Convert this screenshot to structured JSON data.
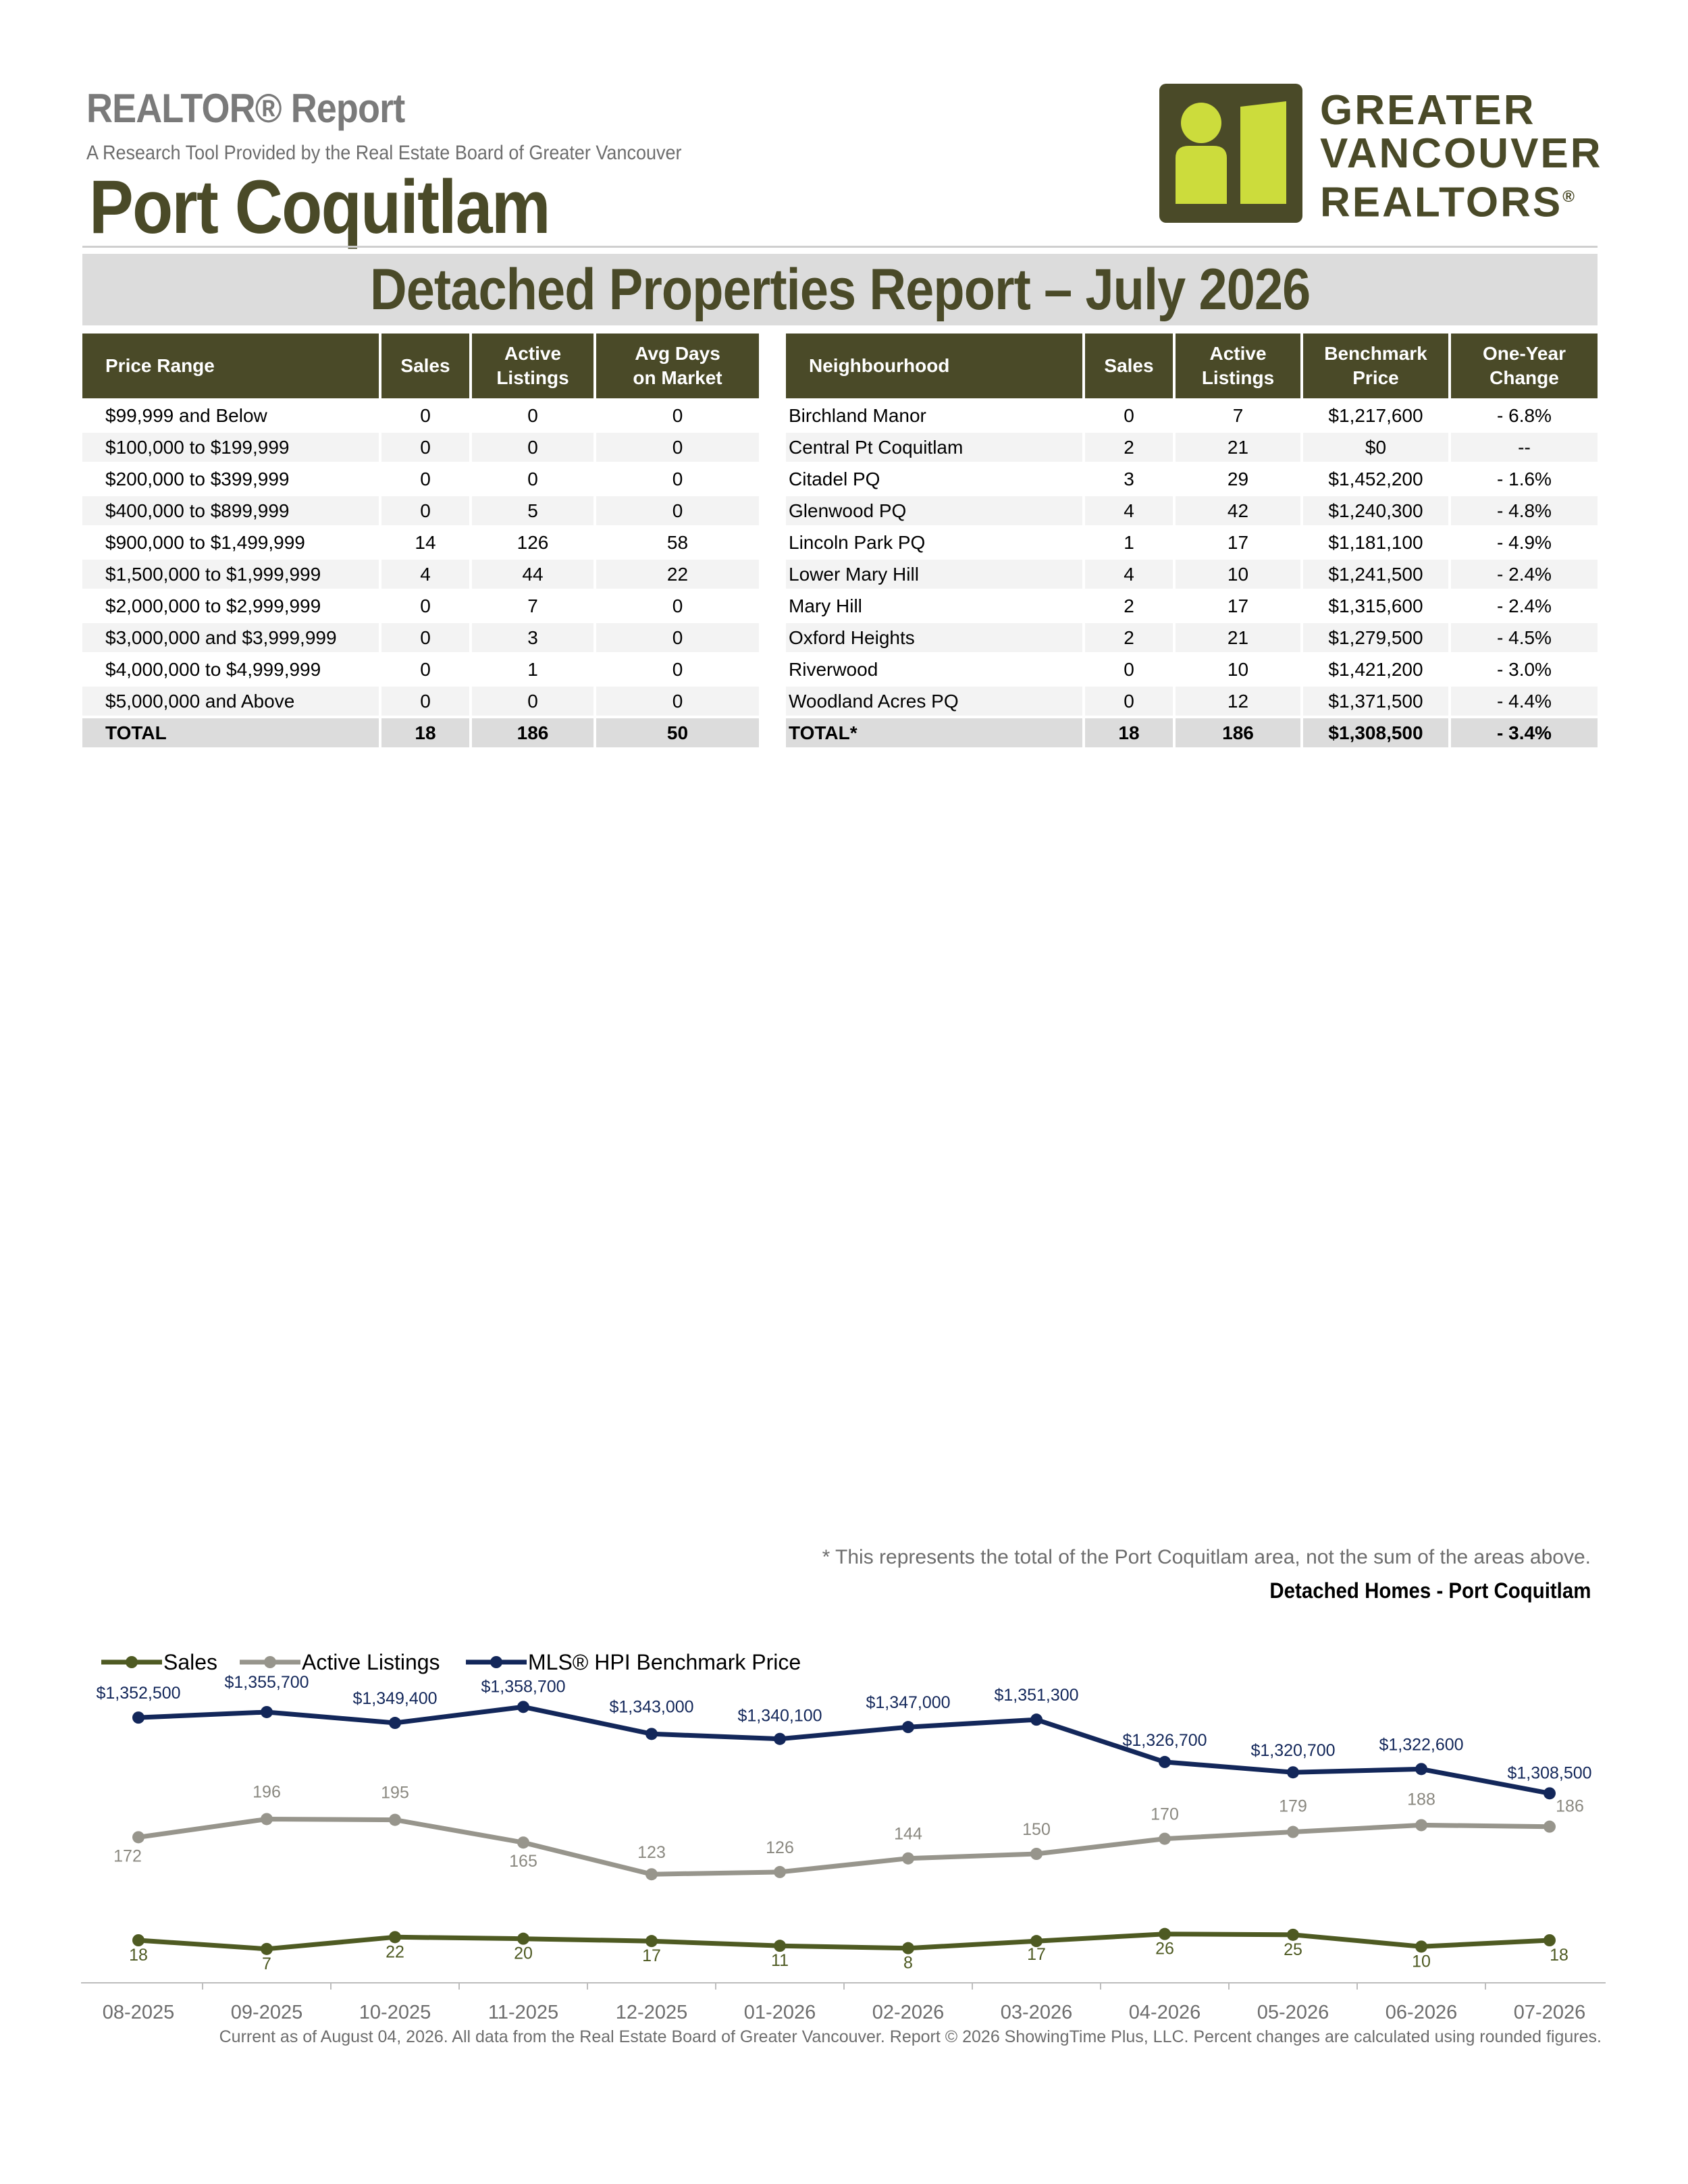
{
  "header": {
    "report_label": "REALTOR® Report",
    "subtitle": "A Research Tool Provided by the Real Estate Board of Greater Vancouver",
    "area": "Port Coquitlam",
    "logo_lines": [
      "GREATER",
      "VANCOUVER",
      "REALTORS"
    ],
    "logo_mark": "®",
    "logo_colors": {
      "primary": "#4a4a28",
      "accent": "#ccdc3c"
    }
  },
  "report_title": "Detached Properties Report – July 2026",
  "price_table": {
    "headers": [
      "Price Range",
      "Sales",
      "Active Listings",
      "Avg Days on Market"
    ],
    "rows": [
      [
        "$99,999 and Below",
        "0",
        "0",
        "0"
      ],
      [
        "$100,000 to $199,999",
        "0",
        "0",
        "0"
      ],
      [
        "$200,000 to $399,999",
        "0",
        "0",
        "0"
      ],
      [
        "$400,000 to $899,999",
        "0",
        "5",
        "0"
      ],
      [
        "$900,000 to $1,499,999",
        "14",
        "126",
        "58"
      ],
      [
        "$1,500,000 to $1,999,999",
        "4",
        "44",
        "22"
      ],
      [
        "$2,000,000 to $2,999,999",
        "0",
        "7",
        "0"
      ],
      [
        "$3,000,000 and $3,999,999",
        "0",
        "3",
        "0"
      ],
      [
        "$4,000,000 to $4,999,999",
        "0",
        "1",
        "0"
      ],
      [
        "$5,000,000 and Above",
        "0",
        "0",
        "0"
      ]
    ],
    "total": [
      "TOTAL",
      "18",
      "186",
      "50"
    ]
  },
  "neighbourhood_table": {
    "headers": [
      "Neighbourhood",
      "Sales",
      "Active Listings",
      "Benchmark Price",
      "One-Year Change"
    ],
    "rows": [
      [
        "Birchland Manor",
        "0",
        "7",
        "$1,217,600",
        "- 6.8%"
      ],
      [
        "Central Pt Coquitlam",
        "2",
        "21",
        "$0",
        "--"
      ],
      [
        "Citadel PQ",
        "3",
        "29",
        "$1,452,200",
        "- 1.6%"
      ],
      [
        "Glenwood PQ",
        "4",
        "42",
        "$1,240,300",
        "- 4.8%"
      ],
      [
        "Lincoln Park PQ",
        "1",
        "17",
        "$1,181,100",
        "- 4.9%"
      ],
      [
        "Lower Mary Hill",
        "4",
        "10",
        "$1,241,500",
        "- 2.4%"
      ],
      [
        "Mary Hill",
        "2",
        "17",
        "$1,315,600",
        "- 2.4%"
      ],
      [
        "Oxford Heights",
        "2",
        "21",
        "$1,279,500",
        "- 4.5%"
      ],
      [
        "Riverwood",
        "0",
        "10",
        "$1,421,200",
        "- 3.0%"
      ],
      [
        "Woodland Acres PQ",
        "0",
        "12",
        "$1,371,500",
        "- 4.4%"
      ]
    ],
    "total": [
      "TOTAL*",
      "18",
      "186",
      "$1,308,500",
      "- 3.4%"
    ]
  },
  "footnote": "* This represents the total of the Port Coquitlam area, not the sum of the areas above.",
  "source": "Current as of August 04, 2026. All data from the Real Estate Board of Greater Vancouver.  Report © 2026 ShowingTime Plus, LLC. Percent changes are calculated using rounded figures.",
  "chart_data": {
    "type": "line",
    "title": "Detached Homes - Port Coquitlam",
    "legend_position": "top-left",
    "categories": [
      "08-2025",
      "09-2025",
      "10-2025",
      "11-2025",
      "12-2025",
      "01-2026",
      "02-2026",
      "03-2026",
      "04-2026",
      "05-2026",
      "06-2026",
      "07-2026"
    ],
    "series": [
      {
        "name": "Sales",
        "color": "#4e5a22",
        "values": [
          18,
          7,
          22,
          20,
          17,
          11,
          8,
          17,
          26,
          25,
          10,
          18
        ],
        "labels": [
          "18",
          "7",
          "22",
          "20",
          "17",
          "11",
          "8",
          "17",
          "26",
          "25",
          "10",
          "18"
        ]
      },
      {
        "name": "Active Listings",
        "color": "#97958c",
        "values": [
          172,
          196,
          195,
          165,
          123,
          126,
          144,
          150,
          170,
          179,
          188,
          186
        ],
        "labels": [
          "172",
          "196",
          "195",
          "165",
          "123",
          "126",
          "144",
          "150",
          "170",
          "179",
          "188",
          "186"
        ]
      },
      {
        "name": "MLS® HPI Benchmark Price",
        "color": "#13275a",
        "values": [
          1352500,
          1355700,
          1349400,
          1358700,
          1343000,
          1340100,
          1347000,
          1351300,
          1326700,
          1320700,
          1322600,
          1308500
        ],
        "labels": [
          "$1,352,500",
          "$1,355,700",
          "$1,349,400",
          "$1,358,700",
          "$1,343,000",
          "$1,340,100",
          "$1,347,000",
          "$1,351,300",
          "$1,326,700",
          "$1,320,700",
          "$1,322,600",
          "$1,308,500"
        ]
      }
    ]
  }
}
